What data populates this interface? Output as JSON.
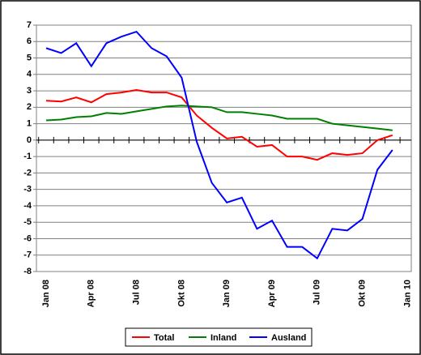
{
  "chart_data": {
    "type": "line",
    "categories": [
      "Jan 08",
      null,
      null,
      "Apr 08",
      null,
      null,
      "Jul 08",
      null,
      null,
      "Okt 08",
      null,
      null,
      "Jan 09",
      null,
      null,
      "Apr 09",
      null,
      null,
      "Jul 09",
      null,
      null,
      "Okt 09",
      null,
      null,
      "Jan 10"
    ],
    "series": [
      {
        "name": "Total",
        "color": "#ff0000",
        "values": [
          2.4,
          2.35,
          2.6,
          2.3,
          2.8,
          2.9,
          3.05,
          2.9,
          2.9,
          2.6,
          1.5,
          0.75,
          0.1,
          0.2,
          -0.4,
          -0.3,
          -1.0,
          -1.0,
          -1.2,
          -0.8,
          -0.9,
          -0.8,
          0.0,
          0.3,
          null
        ]
      },
      {
        "name": "Inland",
        "color": "#008000",
        "values": [
          1.2,
          1.25,
          1.4,
          1.45,
          1.65,
          1.6,
          1.75,
          1.9,
          2.05,
          2.1,
          2.05,
          2.0,
          1.7,
          1.7,
          1.6,
          1.5,
          1.3,
          1.3,
          1.3,
          1.0,
          0.9,
          0.8,
          0.7,
          0.6,
          null
        ]
      },
      {
        "name": "Ausland",
        "color": "#0000ff",
        "values": [
          5.6,
          5.3,
          5.9,
          4.5,
          5.9,
          6.3,
          6.6,
          5.6,
          5.1,
          3.8,
          -0.1,
          -2.6,
          -3.8,
          -3.5,
          -5.4,
          -4.9,
          -6.5,
          -6.5,
          -7.2,
          -5.4,
          -5.5,
          -4.8,
          -1.8,
          -0.6,
          null
        ]
      }
    ],
    "ylim": [
      -8,
      7
    ],
    "yticks": [
      -8,
      -7,
      -6,
      -5,
      -4,
      -3,
      -2,
      -1,
      0,
      1,
      2,
      3,
      4,
      5,
      6,
      7
    ],
    "grid": true,
    "legend": "bottom"
  }
}
